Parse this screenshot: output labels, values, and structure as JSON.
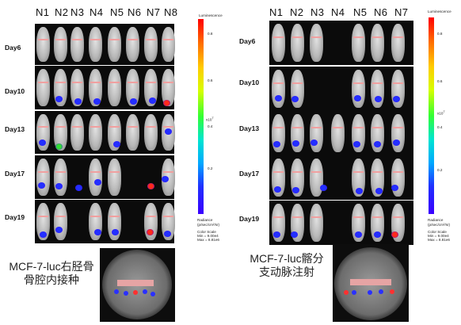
{
  "left_panel": {
    "columns": [
      "N1",
      "N2",
      "N3",
      "N4",
      "N5",
      "N6",
      "N7",
      "N8"
    ],
    "rows": [
      "Day6",
      "Day10",
      "Day13",
      "Day17",
      "Day19"
    ],
    "colorbar": {
      "title": "Luminescence",
      "ticks": [
        "0.8",
        "0.6",
        "0.4",
        "0.2"
      ],
      "multiplier": "x10",
      "exponent": "7",
      "units_line1": "Radiance",
      "units_line2": "(p/sec/cm²/sr)",
      "scale_title": "Color Scale",
      "min": "Min = 9.00e4",
      "max": "Max = 8.81e6"
    },
    "caption_line1": "MCF-7-luc右胫骨",
    "caption_line2": "骨腔内接种"
  },
  "right_panel": {
    "columns": [
      "N1",
      "N2",
      "N3",
      "N4",
      "N5",
      "N6",
      "N7"
    ],
    "rows": [
      "Day6",
      "Day10",
      "Day13",
      "Day17",
      "Day19"
    ],
    "colorbar": {
      "title": "Luminescence",
      "ticks": [
        "0.8",
        "0.6",
        "0.4",
        "0.2"
      ],
      "multiplier": "x10",
      "exponent": "7",
      "units_line1": "Radiance",
      "units_line2": "(p/sec/cm²/sr)",
      "scale_title": "Color Scale",
      "min": "Min = 9.00e4",
      "max": "Max = 8.81e6"
    },
    "caption_line1": "MCF-7-luc髂分",
    "caption_line2": "支动脉注射"
  },
  "colors": {
    "panel_bg": "#0b0b0b",
    "mouse_gray": "#c9c9c9",
    "signal_blue": "#2233ff",
    "signal_red": "#ff2020",
    "signal_green": "#33dd33"
  }
}
